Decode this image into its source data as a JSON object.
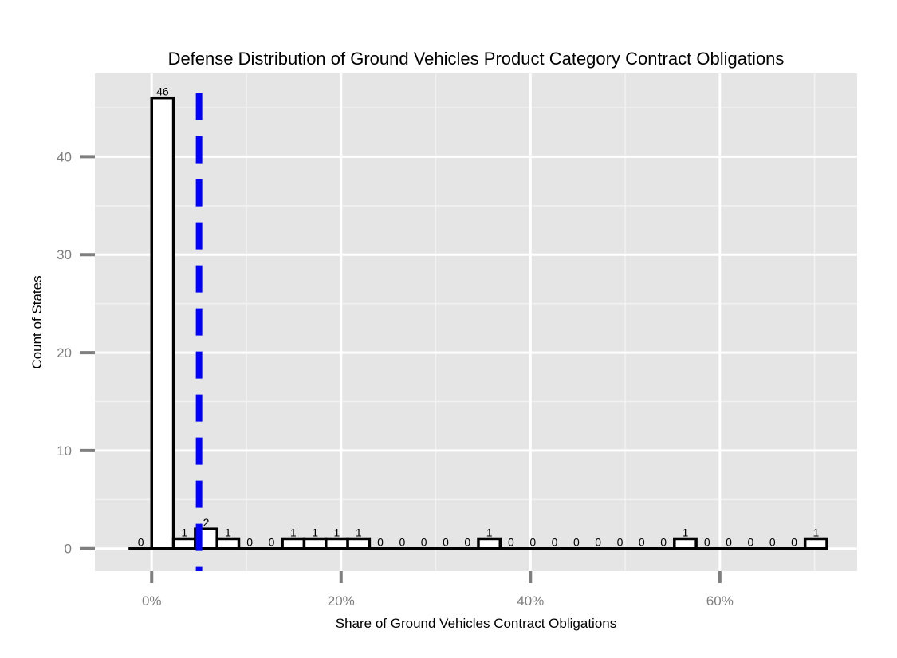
{
  "chart_data": {
    "type": "bar",
    "title": "Defense Distribution of Ground Vehicles Product Category Contract Obligations",
    "xlabel": "Share of Ground Vehicles Contract Obligations",
    "ylabel": "Count of States",
    "xlim": [
      -0.06,
      0.745
    ],
    "ylim": [
      -2.3,
      48.5
    ],
    "grid": true,
    "x_ticks": [
      {
        "value": 0.0,
        "label": "0%"
      },
      {
        "value": 0.2,
        "label": "20%"
      },
      {
        "value": 0.4,
        "label": "40%"
      },
      {
        "value": 0.6,
        "label": "60%"
      }
    ],
    "y_ticks": [
      {
        "value": 0,
        "label": "0"
      },
      {
        "value": 10,
        "label": "10"
      },
      {
        "value": 20,
        "label": "20"
      },
      {
        "value": 30,
        "label": "30"
      },
      {
        "value": 40,
        "label": "40"
      }
    ],
    "bin_width": 0.023,
    "bin_centers": [
      -0.0115,
      0.0115,
      0.0345,
      0.0575,
      0.0805,
      0.1035,
      0.1265,
      0.1495,
      0.1725,
      0.1955,
      0.2185,
      0.2415,
      0.2645,
      0.2875,
      0.3105,
      0.3335,
      0.3565,
      0.3795,
      0.4025,
      0.4255,
      0.4485,
      0.4715,
      0.4945,
      0.5175,
      0.5405,
      0.5635,
      0.5865,
      0.6095,
      0.6325,
      0.6555,
      0.6785,
      0.7015
    ],
    "values": [
      0,
      46,
      1,
      2,
      1,
      0,
      0,
      1,
      1,
      1,
      1,
      0,
      0,
      0,
      0,
      0,
      1,
      0,
      0,
      0,
      0,
      0,
      0,
      0,
      0,
      1,
      0,
      0,
      0,
      0,
      0,
      1
    ],
    "reference_line": {
      "x": 0.05,
      "style": "dashed",
      "color": "#0000ff"
    },
    "colors": {
      "panel": "#e5e5e5",
      "grid_major": "#ffffff",
      "grid_minor": "#f2f2f2",
      "bar_fill": "#ffffff",
      "bar_stroke": "#000000",
      "tick": "#7f7f7f"
    }
  }
}
